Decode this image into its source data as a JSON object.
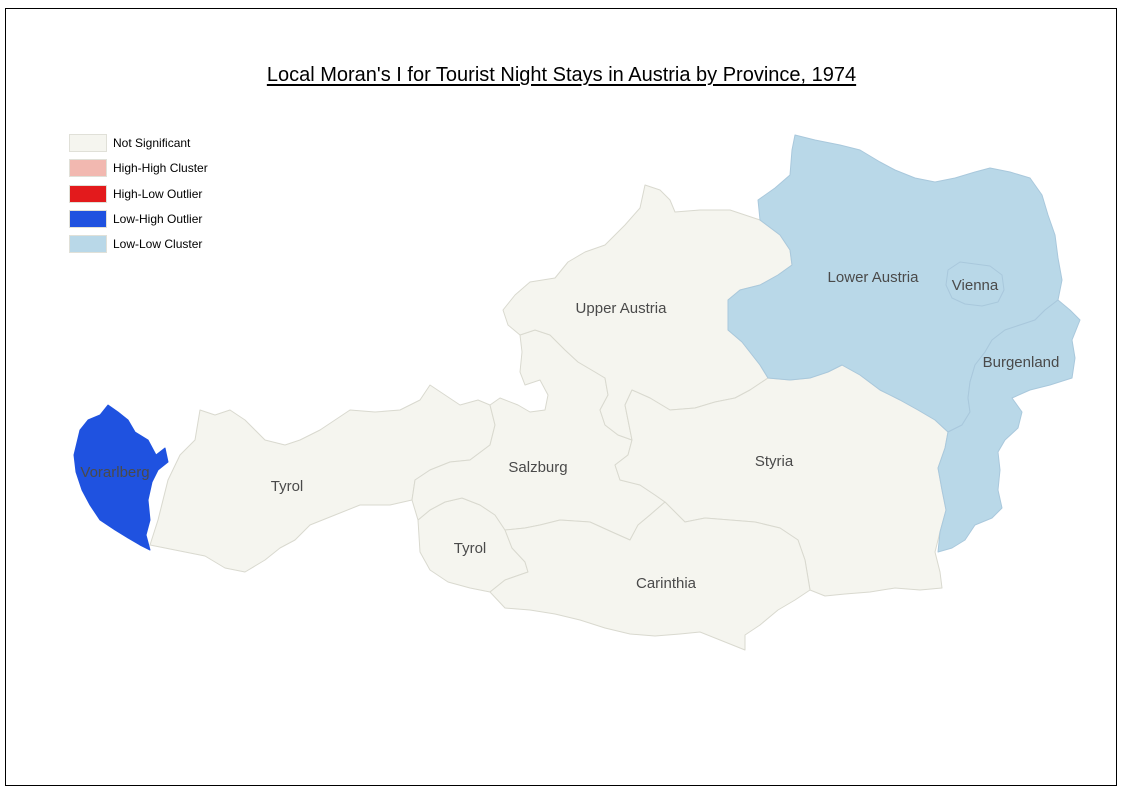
{
  "title": "Local Moran's I for Tourist Night Stays in Austria by Province, 1974",
  "colors": {
    "not_significant": "#f5f5ef",
    "high_high": "#f2b8b0",
    "high_low": "#e31a1c",
    "low_high": "#1f52e0",
    "low_low": "#b9d8e8",
    "border_light": "#d9d9cf",
    "border_blue": "#a9c8dc"
  },
  "legend": [
    {
      "label": "Not Significant",
      "category": "not_significant"
    },
    {
      "label": "High-High Cluster",
      "category": "high_high"
    },
    {
      "label": "High-Low Outlier",
      "category": "high_low"
    },
    {
      "label": "Low-High Outlier",
      "category": "low_high"
    },
    {
      "label": "Low-Low Cluster",
      "category": "low_low"
    }
  ],
  "provinces": [
    {
      "name": "Vorarlberg",
      "label": "Vorarlberg",
      "category": "low_high"
    },
    {
      "name": "Tyrol",
      "label": "Tyrol",
      "category": "not_significant"
    },
    {
      "name": "East Tyrol",
      "label": "Tyrol",
      "category": "not_significant"
    },
    {
      "name": "Salzburg",
      "label": "Salzburg",
      "category": "not_significant"
    },
    {
      "name": "Upper Austria",
      "label": "Upper Austria",
      "category": "not_significant"
    },
    {
      "name": "Styria",
      "label": "Styria",
      "category": "not_significant"
    },
    {
      "name": "Carinthia",
      "label": "Carinthia",
      "category": "not_significant"
    },
    {
      "name": "Lower Austria",
      "label": "Lower Austria",
      "category": "low_low"
    },
    {
      "name": "Vienna",
      "label": "Vienna",
      "category": "low_low"
    },
    {
      "name": "Burgenland",
      "label": "Burgenland",
      "category": "low_low"
    }
  ]
}
